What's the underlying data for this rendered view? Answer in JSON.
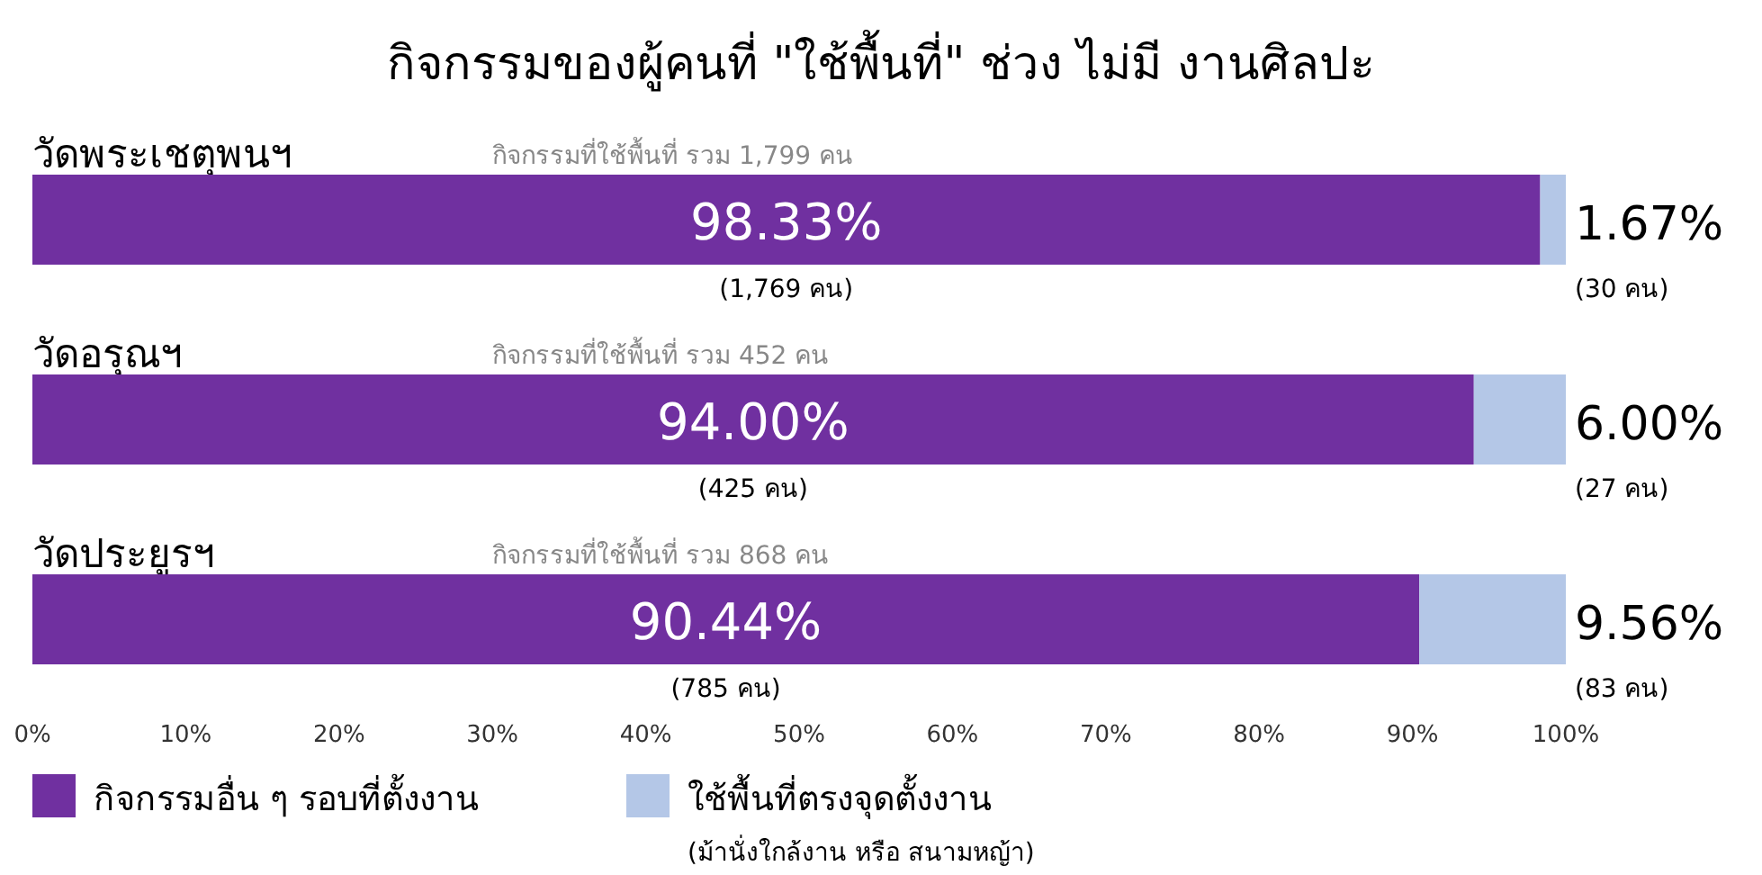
{
  "chart_data": {
    "type": "bar",
    "orientation": "horizontal",
    "stacked": true,
    "title": "กิจกรรมของผู้คนที่ \"ใช้พื้นที่\" ช่วง ไม่มี งานศิลปะ",
    "categories": [
      "วัดพระเชตุพนฯ",
      "วัดอรุณฯ",
      "วัดประยูรฯ"
    ],
    "series": [
      {
        "name": "กิจกรรมอื่น ๆ รอบที่ตั้งงาน",
        "color": "#7030a0",
        "values": [
          98.33,
          94.0,
          90.44
        ],
        "value_labels": [
          "98.33%\n(1,769 คน)",
          "94.00%\n(425 คน)",
          "90.44%\n(785 คน)"
        ]
      },
      {
        "name": "ใช้พื้นที่ตรงจุดตั้งงาน",
        "color": "#b4c7e7",
        "values": [
          1.67,
          6.0,
          9.56
        ],
        "value_labels": [
          "1.67%\n(30 คน)",
          "6.00%\n(27 คน)",
          "9.56%\n(83 คน)"
        ]
      }
    ],
    "totals": [
      "กิจกรรมที่ใช้พื้นที่ รวม 1,799 คน",
      "กิจกรรมที่ใช้พื้นที่ รวม 452 คน",
      "กิจกรรมที่ใช้พื้นที่ รวม 868 คน"
    ],
    "xlim": [
      0,
      100
    ],
    "xticks": [
      {
        "value": 0,
        "label": "0%"
      },
      {
        "value": 10,
        "label": "10%"
      },
      {
        "value": 20,
        "label": "20%"
      },
      {
        "value": 30,
        "label": "30%"
      },
      {
        "value": 40,
        "label": "40%"
      },
      {
        "value": 50,
        "label": "50%"
      },
      {
        "value": 60,
        "label": "60%"
      },
      {
        "value": 70,
        "label": "70%"
      },
      {
        "value": 80,
        "label": "80%"
      },
      {
        "value": 90,
        "label": "90%"
      },
      {
        "value": 100,
        "label": "100%"
      }
    ],
    "legend": "bottom left",
    "annotations": [
      "(ม้านั่งใกล้งาน หรือ สนามหญ้า)"
    ]
  }
}
